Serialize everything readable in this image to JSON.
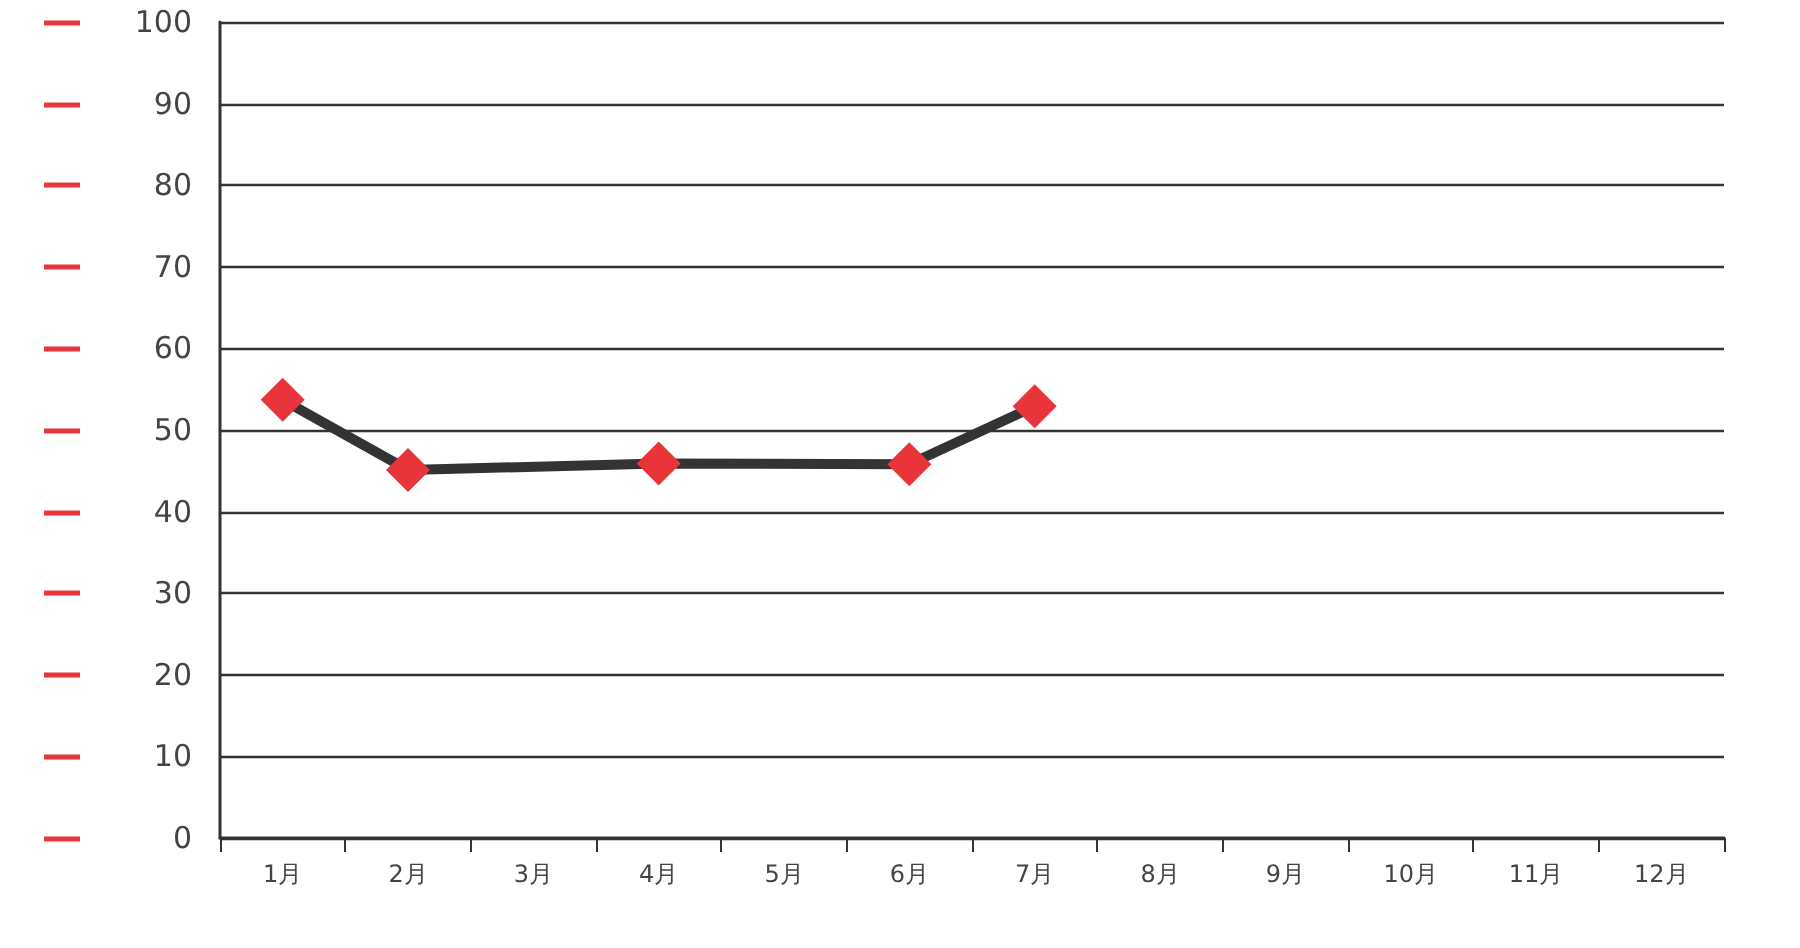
{
  "chart_data": {
    "type": "line",
    "categories": [
      "1月",
      "2月",
      "3月",
      "4月",
      "5月",
      "6月",
      "7月",
      "8月",
      "9月",
      "10月",
      "11月",
      "12月"
    ],
    "series": [
      {
        "color": "#333333",
        "colors": [
          "#e8343a",
          "#e8343a",
          "#e8343a",
          "#e8343a",
          "#e8343a",
          "#e8343a",
          "#e8343a",
          "#e8343a",
          "#e8343a",
          "#e8343a",
          "#e8343a",
          "#e8343a"
        ],
        "values": [
          53.7,
          45.1,
          null,
          45.9,
          null,
          45.8,
          52.9,
          null,
          null,
          null,
          null,
          null
        ]
      }
    ],
    "ylim": [
      0,
      100
    ],
    "yticks": [
      0,
      10,
      20,
      30,
      40,
      50,
      60,
      70,
      80,
      90,
      100
    ],
    "grid": "y",
    "marker": "diamond",
    "line_style": "solid"
  }
}
